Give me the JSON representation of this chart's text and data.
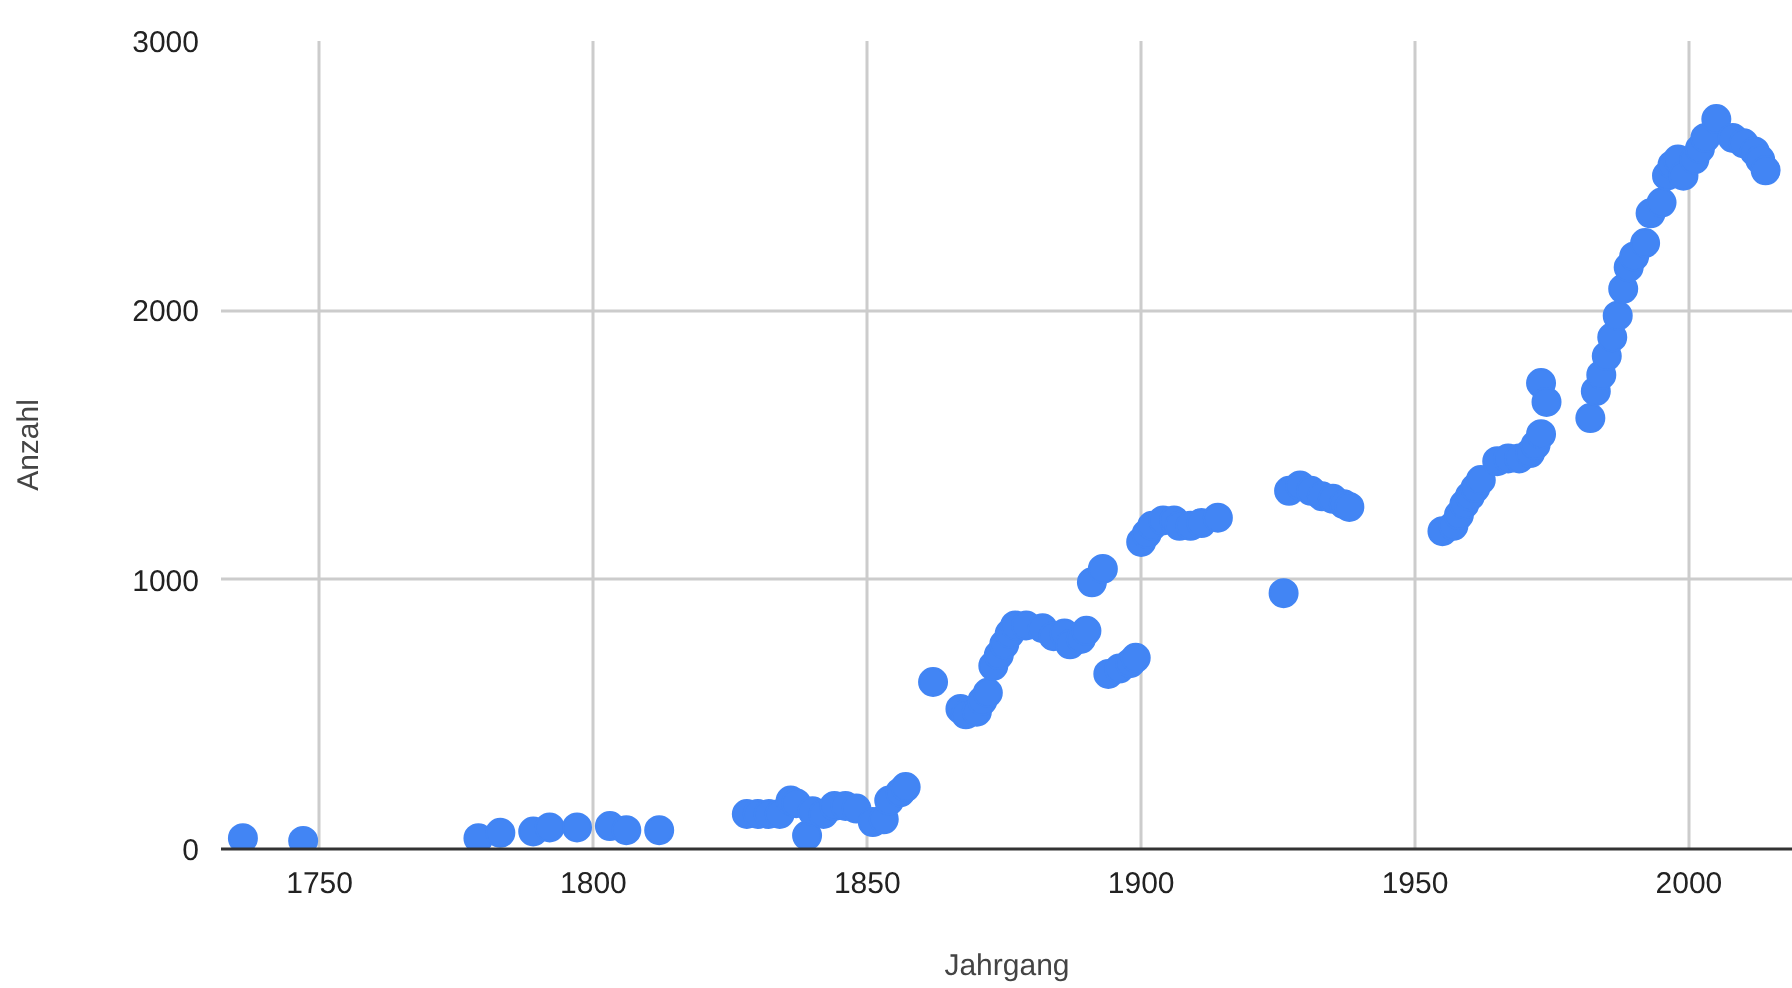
{
  "chart_data": {
    "type": "scatter",
    "xlabel": "Jahrgang",
    "ylabel": "Anzahl",
    "marker": "circle",
    "grid": true,
    "xlim": [
      1732,
      2019
    ],
    "ylim": [
      0,
      3000
    ],
    "xticks": [
      1750,
      1800,
      1850,
      1900,
      1950,
      2000
    ],
    "yticks": [
      0,
      1000,
      2000,
      3000
    ],
    "series": [
      {
        "color": "#4285f4",
        "x": [
          1736,
          1747,
          1779,
          1783,
          1789,
          1792,
          1797,
          1803,
          1806,
          1812,
          1828,
          1830,
          1832,
          1834,
          1836,
          1837,
          1839,
          1840,
          1842,
          1844,
          1846,
          1848,
          1851,
          1853,
          1854,
          1856,
          1857,
          1862,
          1867,
          1868,
          1870,
          1871,
          1872,
          1873,
          1874,
          1875,
          1876,
          1877,
          1879,
          1882,
          1884,
          1886,
          1887,
          1889,
          1890,
          1891,
          1893,
          1894,
          1896,
          1898,
          1899,
          1900,
          1901,
          1902,
          1904,
          1906,
          1907,
          1909,
          1911,
          1914,
          1926,
          1927,
          1929,
          1931,
          1933,
          1935,
          1937,
          1938,
          1955,
          1957,
          1958,
          1959,
          1960,
          1961,
          1962,
          1965,
          1967,
          1969,
          1971,
          1972,
          1973,
          1973,
          1974,
          1982,
          1983,
          1984,
          1985,
          1986,
          1987,
          1988,
          1989,
          1990,
          1992,
          1993,
          1995,
          1996,
          1997,
          1998,
          1999,
          2001,
          2002,
          2003,
          2005,
          2008,
          2010,
          2012,
          2013,
          2014
        ],
        "values": [
          40,
          30,
          40,
          60,
          65,
          80,
          80,
          85,
          70,
          70,
          130,
          130,
          130,
          130,
          180,
          170,
          50,
          140,
          130,
          160,
          160,
          150,
          100,
          110,
          180,
          210,
          230,
          620,
          520,
          500,
          510,
          550,
          580,
          680,
          720,
          760,
          800,
          830,
          830,
          820,
          790,
          800,
          760,
          780,
          810,
          990,
          1040,
          650,
          670,
          690,
          710,
          1140,
          1170,
          1200,
          1220,
          1220,
          1200,
          1200,
          1210,
          1230,
          950,
          1330,
          1350,
          1330,
          1310,
          1300,
          1280,
          1270,
          1180,
          1200,
          1240,
          1280,
          1310,
          1340,
          1370,
          1440,
          1450,
          1450,
          1470,
          1500,
          1540,
          1730,
          1660,
          1600,
          1700,
          1760,
          1830,
          1900,
          1980,
          2080,
          2160,
          2200,
          2250,
          2360,
          2400,
          2500,
          2540,
          2560,
          2500,
          2560,
          2600,
          2640,
          2710,
          2640,
          2620,
          2590,
          2560,
          2520
        ]
      }
    ]
  }
}
